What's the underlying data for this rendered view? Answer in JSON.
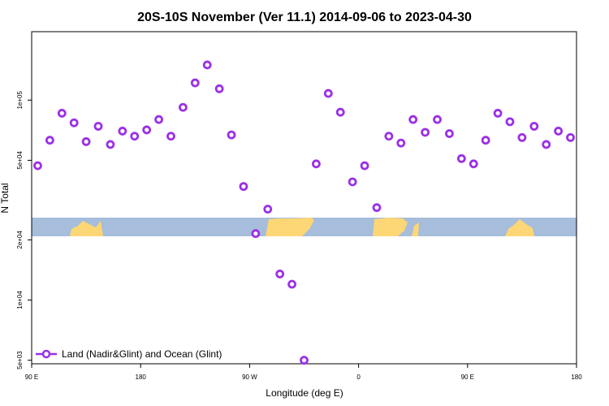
{
  "chart_data": {
    "type": "scatter",
    "title": "20S-10S November (Ver 11.1)   2014-09-06 to 2023-04-30",
    "xlabel": "Longitude (deg E)",
    "ylabel": "N Total",
    "x_scale": "longitude",
    "y_scale": "log",
    "xlim": [
      90,
      540
    ],
    "ylim": [
      4800,
      220000
    ],
    "x_ticks": [
      {
        "value": 90,
        "label": "90 E"
      },
      {
        "value": 180,
        "label": "180"
      },
      {
        "value": 270,
        "label": "90 W"
      },
      {
        "value": 360,
        "label": "0"
      },
      {
        "value": 450,
        "label": "90 E"
      },
      {
        "value": 540,
        "label": "180"
      }
    ],
    "y_ticks": [
      {
        "value": 5000,
        "label": "5e+03"
      },
      {
        "value": 10000,
        "label": "1e+04"
      },
      {
        "value": 20000,
        "label": "2e+04"
      },
      {
        "value": 50000,
        "label": "5e+04"
      },
      {
        "value": 100000,
        "label": "1e+05"
      }
    ],
    "grid": false,
    "legend_position": "bottom-left",
    "map_strip": {
      "colors": {
        "ocean": "#a6bddb",
        "land": "#fdd675"
      }
    },
    "series": [
      {
        "name": "Land (Nadir&Glint) and Ocean (Glint)",
        "color": "#9b30e8",
        "marker": "circle-open",
        "x": [
          95,
          105,
          115,
          125,
          135,
          145,
          155,
          165,
          175,
          185,
          195,
          205,
          215,
          225,
          235,
          245,
          255,
          265,
          275,
          285,
          295,
          305,
          315,
          325,
          335,
          345,
          355,
          365,
          375,
          385,
          395,
          405,
          415,
          425,
          435,
          445,
          455,
          465,
          475,
          485,
          495,
          505,
          515,
          525,
          535
        ],
        "y": [
          47000,
          63000,
          86000,
          77000,
          62000,
          74000,
          60000,
          70000,
          66000,
          71000,
          80000,
          66000,
          92000,
          122000,
          150000,
          114000,
          67000,
          37000,
          21500,
          28500,
          13500,
          12000,
          5000,
          48000,
          108000,
          87000,
          39000,
          47000,
          29000,
          66000,
          61000,
          80000,
          69000,
          80000,
          68000,
          51000,
          48000,
          63000,
          86000,
          78000,
          65000,
          74000,
          60000,
          70000,
          65000
        ]
      }
    ]
  }
}
